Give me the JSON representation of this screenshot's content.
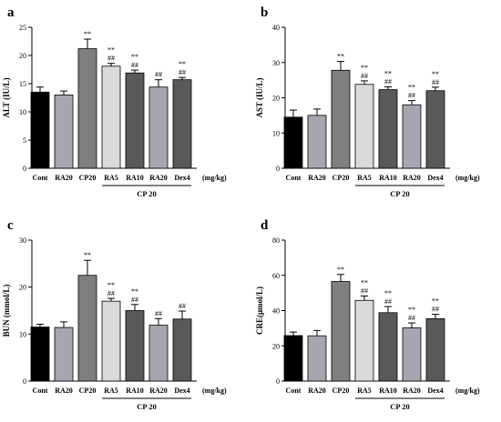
{
  "figure": {
    "group_label": "CP 20",
    "unit_label": "(mg/kg)"
  },
  "chart_data": [
    {
      "type": "bar",
      "letter": "a",
      "ylabel": "ALT (IU/L)",
      "ylim": [
        0,
        25
      ],
      "yticks": [
        0,
        5,
        10,
        15,
        20,
        25
      ],
      "categories": [
        "Cont",
        "RA20",
        "CP20",
        "RA5",
        "RA10",
        "RA20",
        "Dex4"
      ],
      "values": [
        13.5,
        13.0,
        21.2,
        18.1,
        16.9,
        14.4,
        15.7
      ],
      "errors": [
        0.9,
        0.7,
        1.7,
        0.5,
        0.5,
        1.3,
        0.4
      ],
      "annotations": [
        {
          "top": "",
          "bottom": ""
        },
        {
          "top": "",
          "bottom": ""
        },
        {
          "top": "**",
          "bottom": ""
        },
        {
          "top": "**",
          "bottom": "##"
        },
        {
          "top": "**",
          "bottom": "##"
        },
        {
          "top": "",
          "bottom": "##"
        },
        {
          "top": "**",
          "bottom": "##"
        }
      ],
      "colors": [
        "#000000",
        "#a6a6b0",
        "#7f7f7f",
        "#d9d9d9",
        "#595959",
        "#a6a6b0",
        "#595959"
      ]
    },
    {
      "type": "bar",
      "letter": "b",
      "ylabel": "AST (IU/L)",
      "ylim": [
        0,
        40
      ],
      "yticks": [
        0,
        10,
        20,
        30,
        40
      ],
      "categories": [
        "Cont",
        "RA20",
        "CP20",
        "RA5",
        "RA10",
        "RA20",
        "Dex4"
      ],
      "values": [
        14.5,
        15.0,
        27.8,
        23.8,
        22.3,
        18.0,
        22.0
      ],
      "errors": [
        2.0,
        1.8,
        2.5,
        1.0,
        0.8,
        1.2,
        1.0
      ],
      "annotations": [
        {
          "top": "",
          "bottom": ""
        },
        {
          "top": "",
          "bottom": ""
        },
        {
          "top": "**",
          "bottom": ""
        },
        {
          "top": "**",
          "bottom": "##"
        },
        {
          "top": "**",
          "bottom": "##"
        },
        {
          "top": "**",
          "bottom": "##"
        },
        {
          "top": "**",
          "bottom": "##"
        }
      ],
      "colors": [
        "#000000",
        "#a6a6b0",
        "#7f7f7f",
        "#d9d9d9",
        "#595959",
        "#a6a6b0",
        "#595959"
      ]
    },
    {
      "type": "bar",
      "letter": "c",
      "ylabel": "BUN (mmol/L)",
      "ylim": [
        0,
        30
      ],
      "yticks": [
        0,
        10,
        20,
        30
      ],
      "categories": [
        "Cont",
        "RA20",
        "CP20",
        "RA5",
        "RA10",
        "RA20",
        "Dex4"
      ],
      "values": [
        11.5,
        11.4,
        22.5,
        17.0,
        15.0,
        11.9,
        13.2
      ],
      "errors": [
        0.6,
        1.2,
        3.2,
        0.6,
        1.3,
        1.4,
        1.7
      ],
      "annotations": [
        {
          "top": "",
          "bottom": ""
        },
        {
          "top": "",
          "bottom": ""
        },
        {
          "top": "**",
          "bottom": ""
        },
        {
          "top": "**",
          "bottom": "##"
        },
        {
          "top": "**",
          "bottom": "##"
        },
        {
          "top": "",
          "bottom": "##"
        },
        {
          "top": "",
          "bottom": "##"
        }
      ],
      "colors": [
        "#000000",
        "#a6a6b0",
        "#7f7f7f",
        "#d9d9d9",
        "#595959",
        "#a6a6b0",
        "#595959"
      ]
    },
    {
      "type": "bar",
      "letter": "d",
      "ylabel": "CRE(μmol/L)",
      "ylim": [
        0,
        80
      ],
      "yticks": [
        0,
        20,
        40,
        60,
        80
      ],
      "categories": [
        "Cont",
        "RA20",
        "CP20",
        "RA5",
        "RA10",
        "RA20",
        "Dex4"
      ],
      "values": [
        25.8,
        25.7,
        56.5,
        45.8,
        38.8,
        30.2,
        35.4
      ],
      "errors": [
        2.0,
        3.0,
        4.0,
        2.5,
        3.5,
        2.8,
        2.5
      ],
      "annotations": [
        {
          "top": "",
          "bottom": ""
        },
        {
          "top": "",
          "bottom": ""
        },
        {
          "top": "**",
          "bottom": ""
        },
        {
          "top": "**",
          "bottom": "##"
        },
        {
          "top": "**",
          "bottom": "##"
        },
        {
          "top": "**",
          "bottom": "##"
        },
        {
          "top": "**",
          "bottom": "##"
        }
      ],
      "colors": [
        "#000000",
        "#a6a6b0",
        "#7f7f7f",
        "#d9d9d9",
        "#595959",
        "#a6a6b0",
        "#595959"
      ]
    }
  ]
}
